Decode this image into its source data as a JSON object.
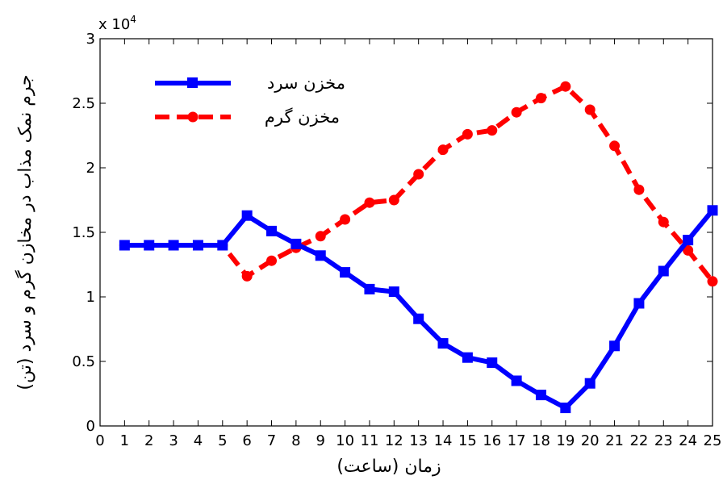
{
  "chart_data": {
    "type": "line",
    "x": [
      1,
      2,
      3,
      4,
      5,
      6,
      7,
      8,
      9,
      10,
      11,
      12,
      13,
      14,
      15,
      16,
      17,
      18,
      19,
      20,
      21,
      22,
      23,
      24,
      25
    ],
    "xlim": [
      0,
      25
    ],
    "ylim": [
      0,
      30000
    ],
    "xticks": [
      "0",
      "1",
      "2",
      "3",
      "4",
      "5",
      "6",
      "7",
      "8",
      "9",
      "10",
      "11",
      "12",
      "13",
      "14",
      "15",
      "16",
      "17",
      "18",
      "19",
      "20",
      "21",
      "22",
      "23",
      "24",
      "25"
    ],
    "yticks": [
      "0",
      "0.5",
      "1",
      "1.5",
      "2",
      "2.5",
      "3"
    ],
    "y_exponent_label": "x 10",
    "y_exponent_power": "4",
    "xlabel": "زمان (ساعت)",
    "ylabel": "جرم نمک مذاب در مخازن گرم و سرد (تن)",
    "legend_position": "top-left",
    "grid": false,
    "series": [
      {
        "name": "مخزن سرد",
        "color": "#0000ff",
        "marker": "square",
        "line_style": "solid",
        "values": [
          14000,
          14000,
          14000,
          14000,
          14000,
          16300,
          15100,
          14100,
          13200,
          11900,
          10600,
          10400,
          8300,
          6400,
          5300,
          4900,
          3500,
          2400,
          1400,
          3300,
          6200,
          9500,
          12000,
          14400,
          16700
        ]
      },
      {
        "name": "مخزن گرم",
        "color": "#ff0000",
        "marker": "circle",
        "line_style": "dashed",
        "values": [
          14000,
          14000,
          14000,
          14000,
          14000,
          11600,
          12800,
          13800,
          14700,
          16000,
          17300,
          17500,
          19500,
          21400,
          22600,
          22900,
          24300,
          25400,
          26300,
          24500,
          21700,
          18300,
          15800,
          13600,
          11200
        ]
      }
    ]
  }
}
